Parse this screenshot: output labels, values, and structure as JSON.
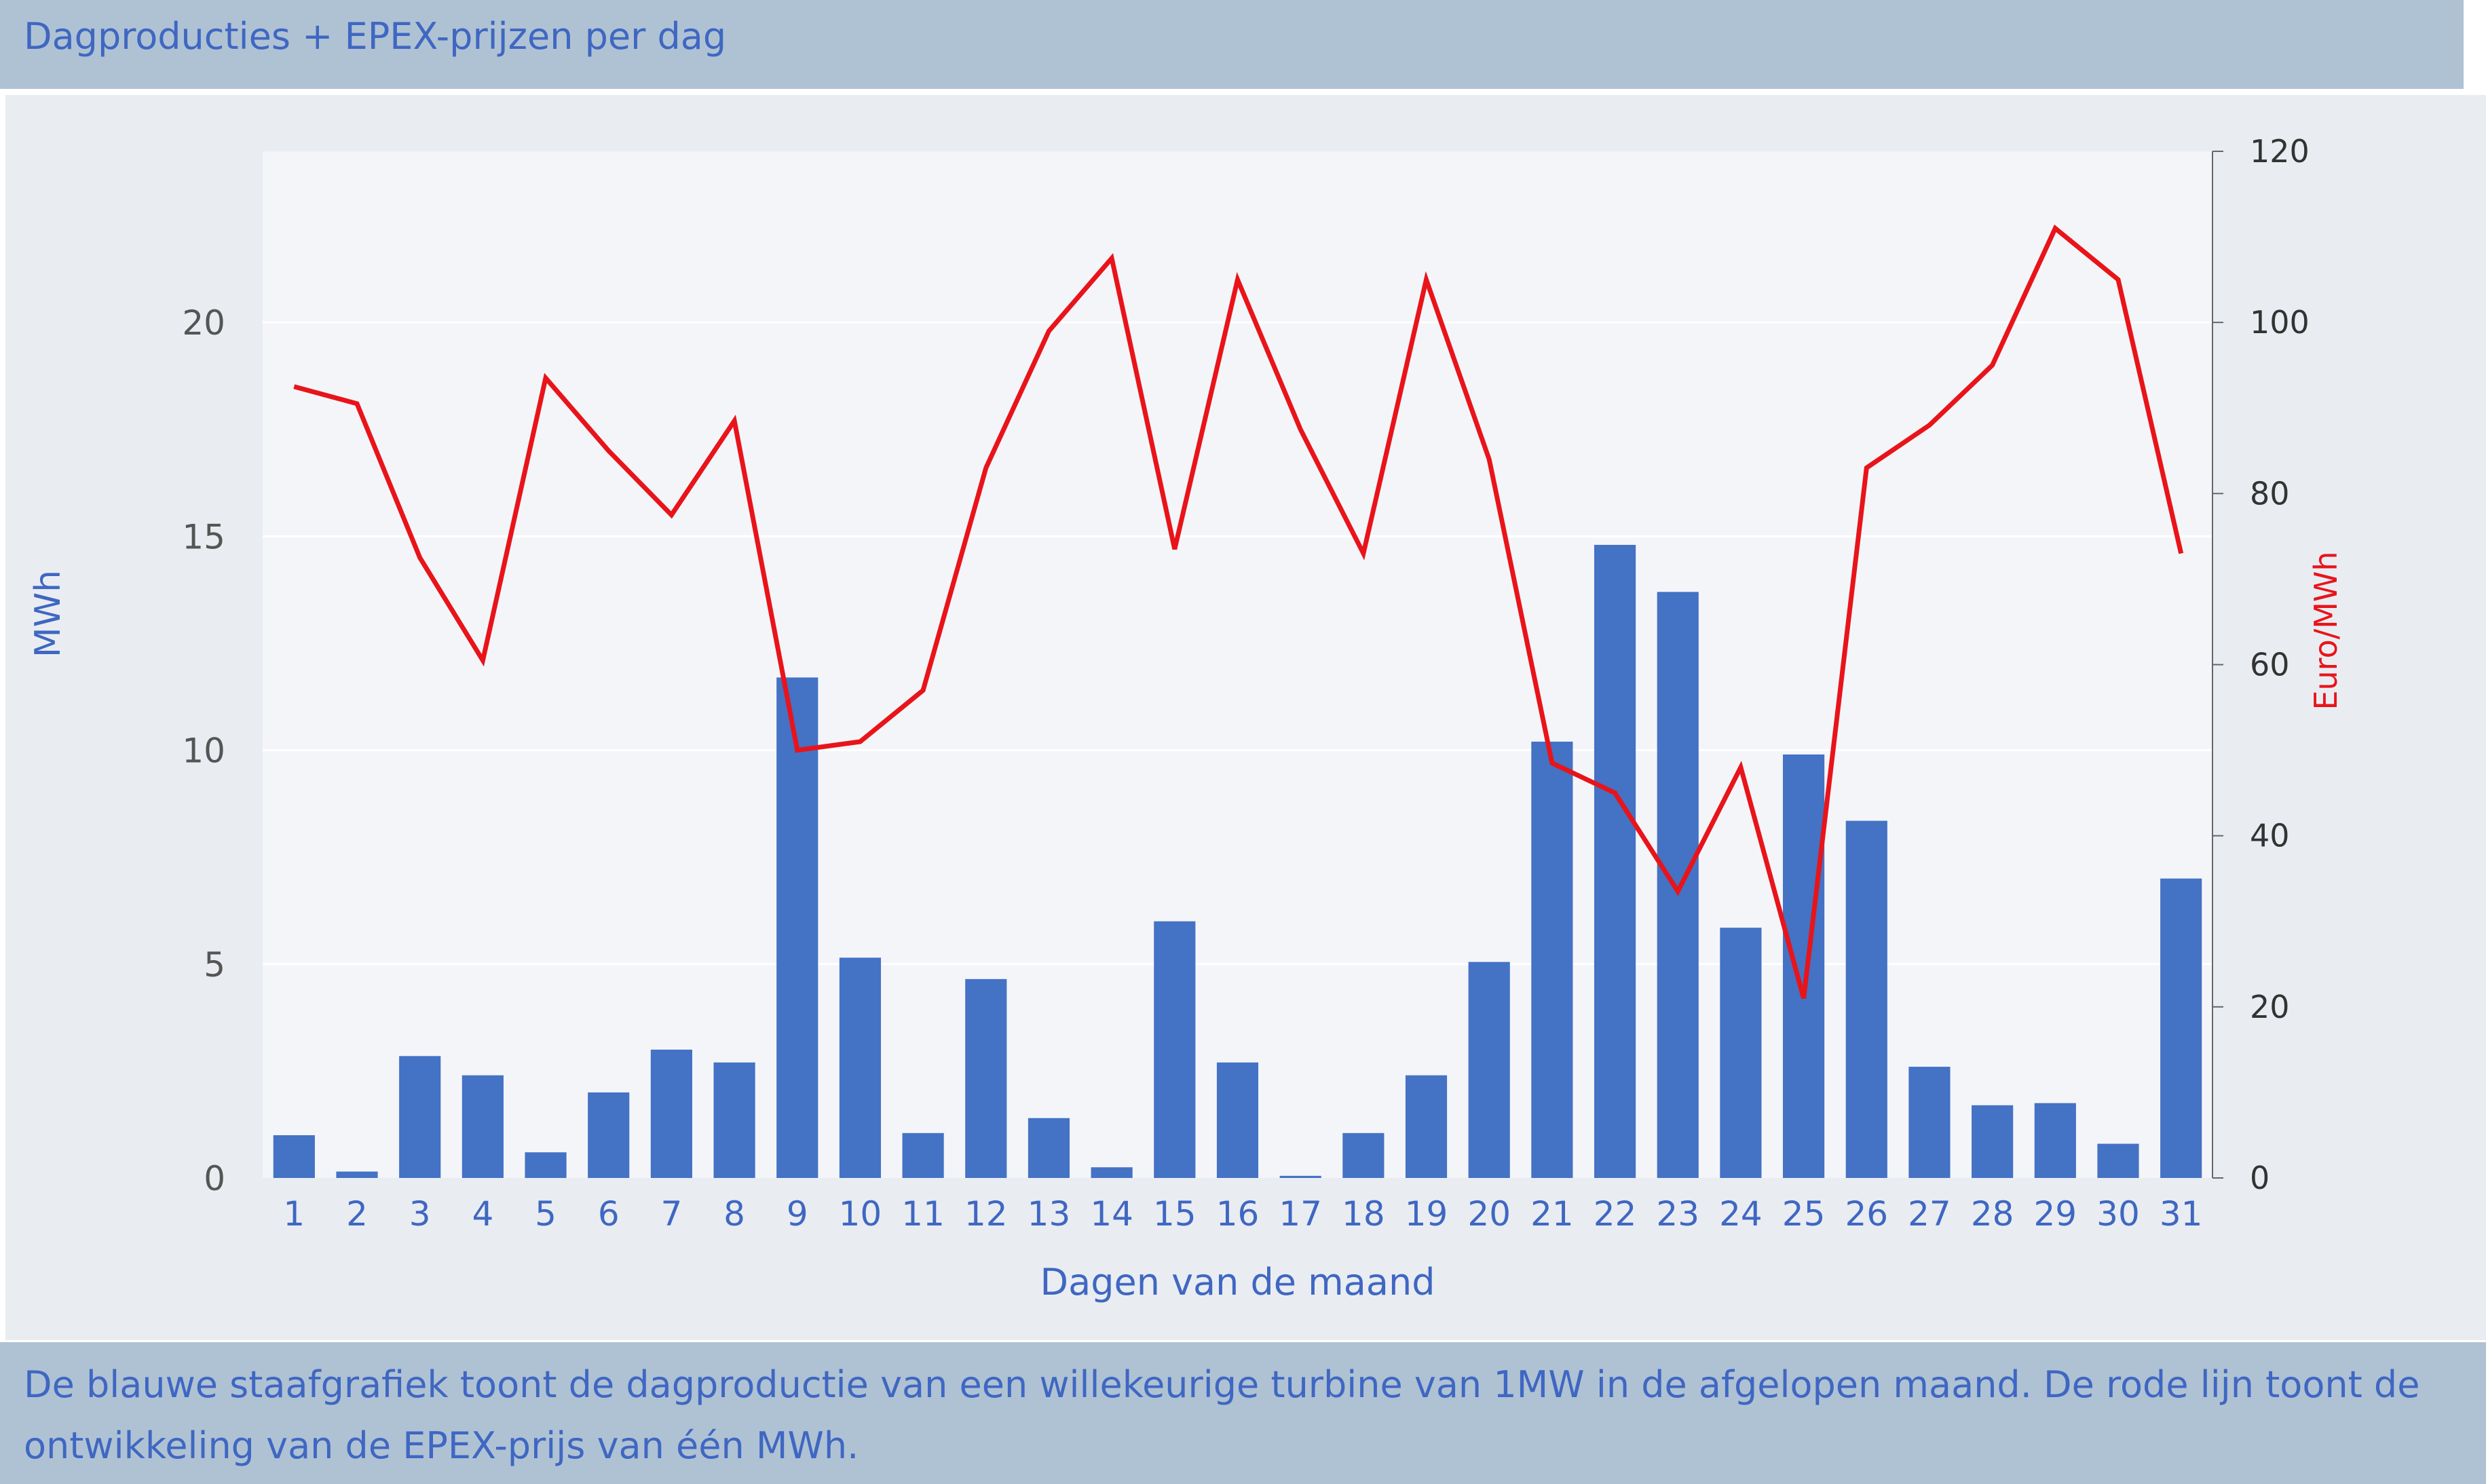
{
  "header": {
    "title": "Dagproducties + EPEX-prijzen per dag"
  },
  "footer": {
    "text": "De blauwe staafgrafiek toont de dagproductie van een willekeurige turbine van 1MW in de afgelopen maand. De rode lijn toont de ontwikkeling van de EPEX-prijs van één MWh."
  },
  "chart_data": {
    "type": "bar",
    "title": "Dagproducties + EPEX-prijzen per dag",
    "xlabel": "Dagen van de maand",
    "ylabel": "MWh",
    "y2label": "Euro/MWh",
    "categories": [
      "1",
      "2",
      "3",
      "4",
      "5",
      "6",
      "7",
      "8",
      "9",
      "10",
      "11",
      "12",
      "13",
      "14",
      "15",
      "16",
      "17",
      "18",
      "19",
      "20",
      "21",
      "22",
      "23",
      "24",
      "25",
      "26",
      "27",
      "28",
      "29",
      "30",
      "31"
    ],
    "ylim": [
      0,
      24
    ],
    "yticks": [
      0,
      5,
      10,
      15,
      20
    ],
    "y2lim": [
      0,
      120
    ],
    "y2ticks": [
      0,
      20,
      40,
      60,
      80,
      100,
      120
    ],
    "grid": true,
    "series": [
      {
        "type": "bar",
        "axis": "left",
        "color": "#4472c4",
        "values": [
          1.0,
          0.15,
          2.85,
          2.4,
          0.6,
          2.0,
          3.0,
          2.7,
          11.7,
          5.15,
          1.05,
          4.65,
          1.4,
          0.25,
          6.0,
          2.7,
          0.05,
          1.05,
          2.4,
          5.05,
          10.2,
          14.8,
          13.7,
          5.85,
          9.9,
          8.35,
          2.6,
          1.7,
          1.75,
          0.8,
          7.0
        ]
      },
      {
        "type": "line",
        "axis": "right",
        "color": "#e8141a",
        "values": [
          92.5,
          90.5,
          72.5,
          60.5,
          93.5,
          85.0,
          77.5,
          88.5,
          50.0,
          51.0,
          57.0,
          83.0,
          99.0,
          107.5,
          73.5,
          105.0,
          87.5,
          73.0,
          105.0,
          84.0,
          48.5,
          45.0,
          33.5,
          48.0,
          21.0,
          83.0,
          88.0,
          95.0,
          111.0,
          105.0,
          73.0
        ]
      }
    ]
  }
}
